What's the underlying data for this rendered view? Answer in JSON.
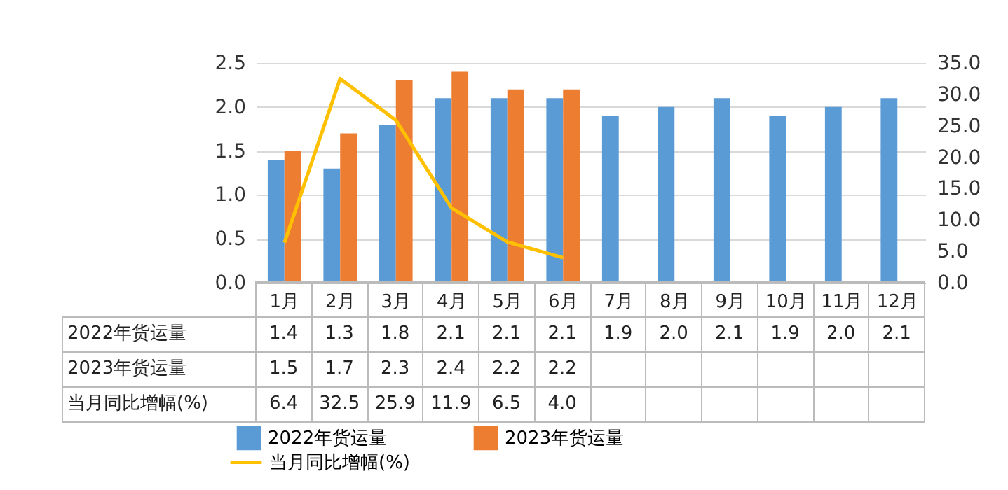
{
  "chart_data": {
    "type": "bar",
    "categories": [
      "1月",
      "2月",
      "3月",
      "4月",
      "5月",
      "6月",
      "7月",
      "8月",
      "9月",
      "10月",
      "11月",
      "12月"
    ],
    "series": [
      {
        "name": "2022年货运量",
        "type": "bar",
        "color": "#5b9bd5",
        "values": [
          1.4,
          1.3,
          1.8,
          2.1,
          2.1,
          2.1,
          1.9,
          2.0,
          2.1,
          1.9,
          2.0,
          2.1
        ],
        "value_labels": [
          "1.4",
          "1.3",
          "1.8",
          "2.1",
          "2.1",
          "2.1",
          "1.9",
          "2.0",
          "2.1",
          "1.9",
          "2.0",
          "2.1"
        ]
      },
      {
        "name": "2023年货运量",
        "type": "bar",
        "color": "#ed7d31",
        "values": [
          1.5,
          1.7,
          2.3,
          2.4,
          2.2,
          2.2,
          null,
          null,
          null,
          null,
          null,
          null
        ],
        "value_labels": [
          "1.5",
          "1.7",
          "2.3",
          "2.4",
          "2.2",
          "2.2",
          null,
          null,
          null,
          null,
          null,
          null
        ]
      },
      {
        "name": "当月同比增幅(%)",
        "type": "line",
        "axis": "y2",
        "color": "#ffc000",
        "values": [
          6.4,
          32.5,
          25.9,
          11.9,
          6.5,
          4.0,
          null,
          null,
          null,
          null,
          null,
          null
        ],
        "value_labels": [
          "6.4",
          "32.5",
          "25.9",
          "11.9",
          "6.5",
          "4.0",
          null,
          null,
          null,
          null,
          null,
          null
        ]
      }
    ],
    "ylim": [
      0,
      2.5
    ],
    "yticks": [
      {
        "value": 0,
        "label": "0.0"
      },
      {
        "value": 0.5,
        "label": "0.5"
      },
      {
        "value": 1,
        "label": "1.0"
      },
      {
        "value": 1.5,
        "label": "1.5"
      },
      {
        "value": 2,
        "label": "2.0"
      },
      {
        "value": 2.5,
        "label": "2.5"
      }
    ],
    "y2lim": [
      0,
      35
    ],
    "y2ticks": [
      {
        "value": 0,
        "label": "0.0"
      },
      {
        "value": 5,
        "label": "5.0"
      },
      {
        "value": 10,
        "label": "10.0"
      },
      {
        "value": 15,
        "label": "15.0"
      },
      {
        "value": 20,
        "label": "20.0"
      },
      {
        "value": 25,
        "label": "25.0"
      },
      {
        "value": 30,
        "label": "30.0"
      },
      {
        "value": 35,
        "label": "35.0"
      }
    ],
    "grid": "y",
    "legend": "bottom",
    "marker": "none",
    "line_style": "solid"
  }
}
